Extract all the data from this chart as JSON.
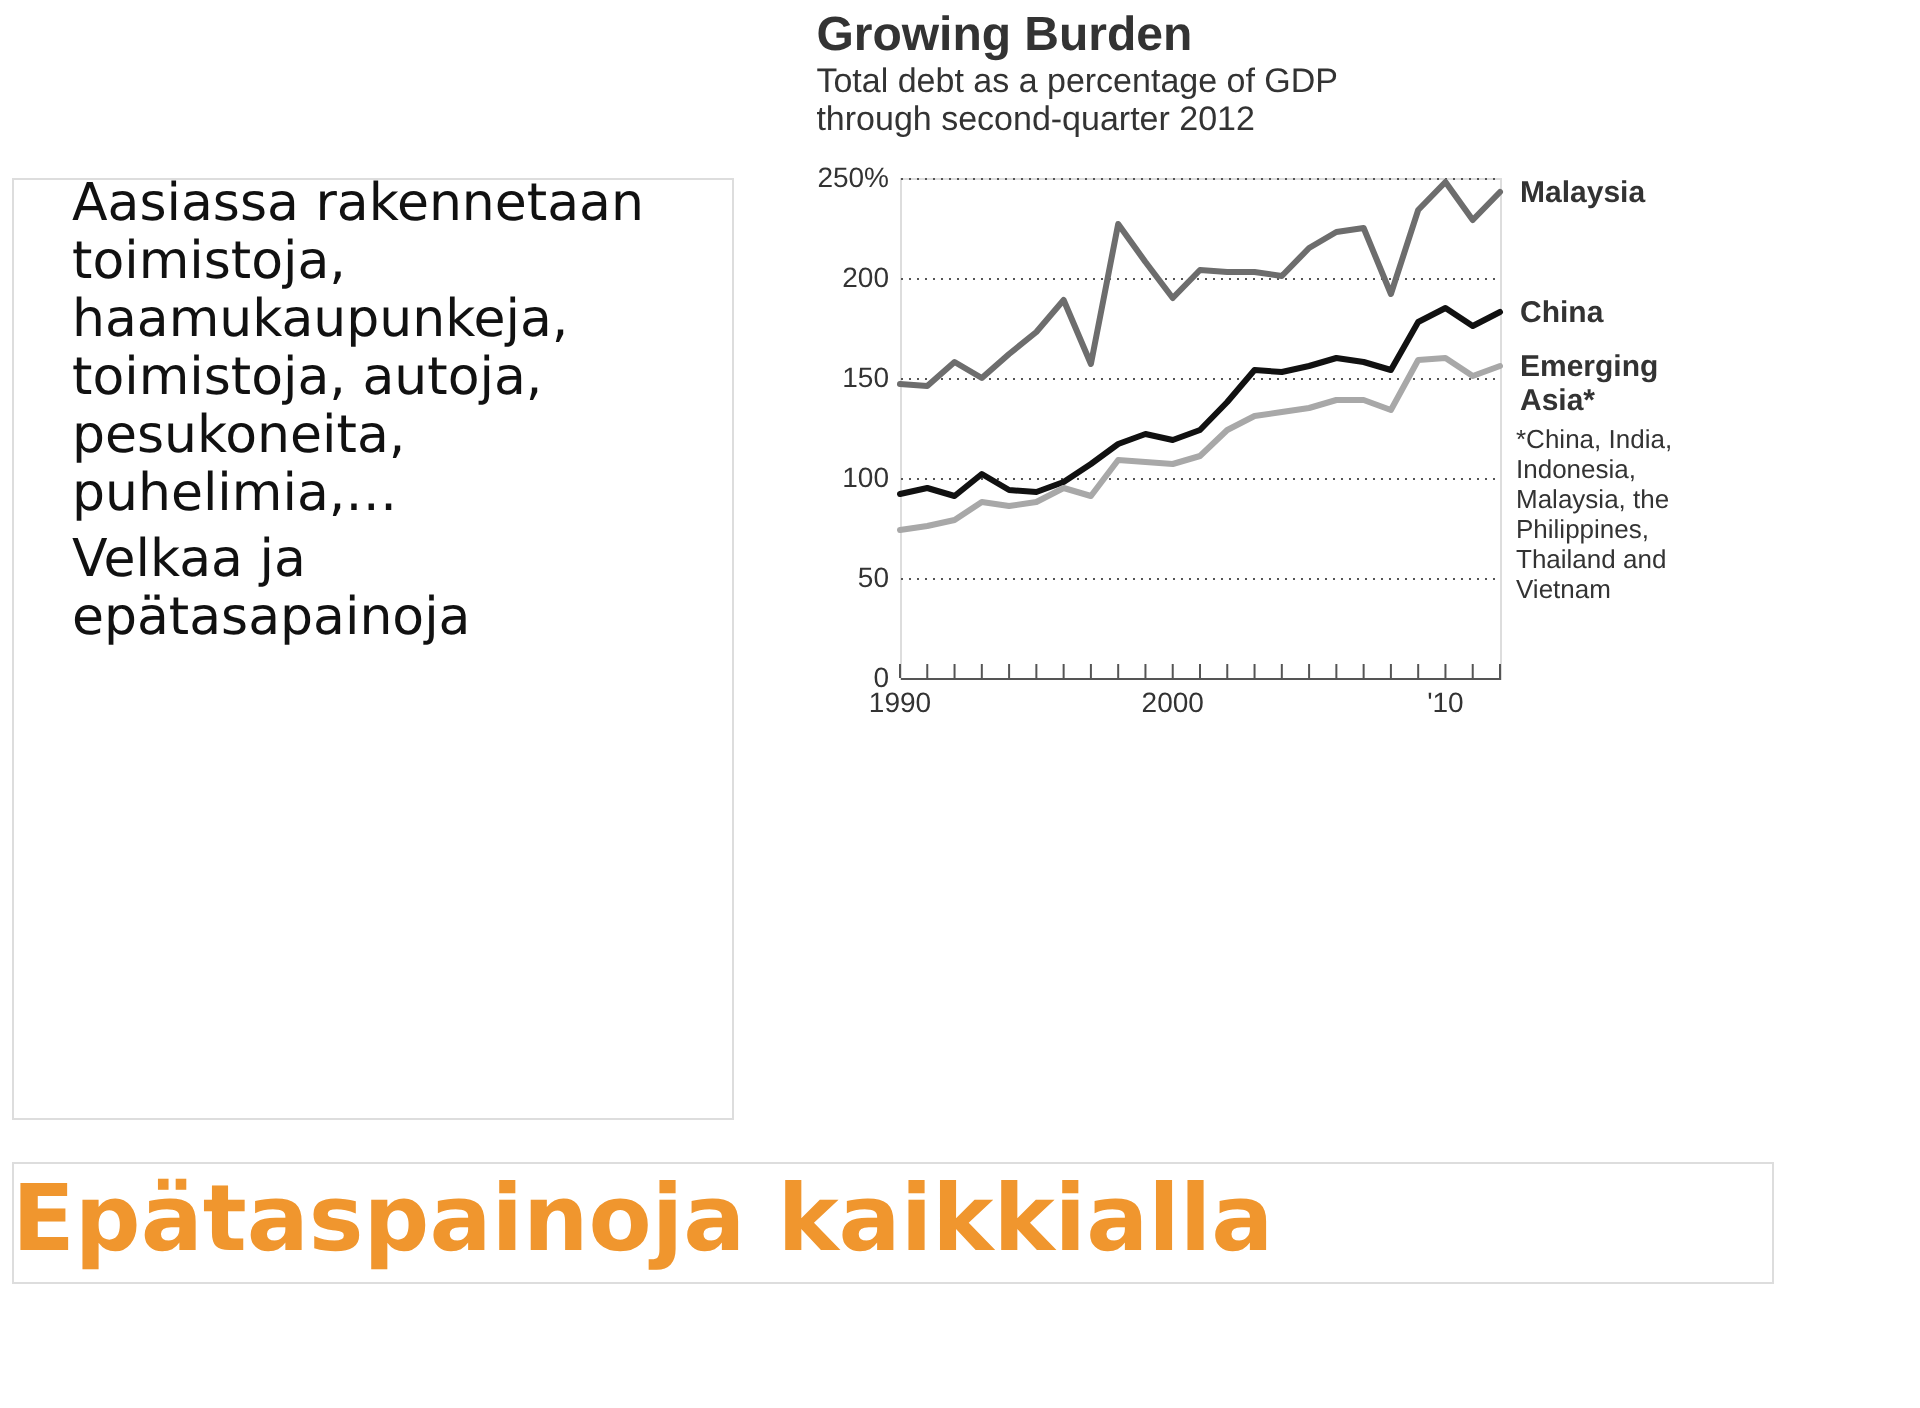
{
  "chart_data": {
    "type": "line",
    "title": "Growing Burden",
    "subtitle": "Total debt as a percentage of GDP through second-quarter 2012",
    "x": [
      1990,
      1991,
      1992,
      1993,
      1994,
      1995,
      1996,
      1997,
      1998,
      1999,
      2000,
      2001,
      2002,
      2003,
      2004,
      2005,
      2006,
      2007,
      2008,
      2009,
      2010,
      2011,
      2012
    ],
    "series": [
      {
        "name": "Malaysia",
        "color": "#6d6d6d",
        "values": [
          147,
          146,
          158,
          150,
          162,
          173,
          189,
          157,
          227,
          208,
          190,
          204,
          203,
          203,
          201,
          215,
          223,
          225,
          192,
          234,
          248,
          229,
          243
        ]
      },
      {
        "name": "China",
        "color": "#111111",
        "values": [
          92,
          95,
          91,
          102,
          94,
          93,
          98,
          107,
          117,
          122,
          119,
          124,
          138,
          154,
          153,
          156,
          160,
          158,
          154,
          178,
          185,
          176,
          183
        ]
      },
      {
        "name": "Emerging Asia*",
        "color": "#a8a8a8",
        "values": [
          74,
          76,
          79,
          88,
          86,
          88,
          95,
          91,
          109,
          108,
          107,
          111,
          124,
          131,
          133,
          135,
          139,
          139,
          134,
          159,
          160,
          151,
          156
        ]
      }
    ],
    "xlim": [
      1990,
      2012
    ],
    "xticks": [
      1990,
      {
        "value": 1991,
        "label": null
      },
      {
        "value": 1992,
        "label": null
      },
      {
        "value": 1993,
        "label": null
      },
      {
        "value": 1994,
        "label": null
      },
      {
        "value": 1995,
        "label": null
      },
      {
        "value": 1996,
        "label": null
      },
      {
        "value": 1997,
        "label": null
      },
      {
        "value": 1998,
        "label": null
      },
      {
        "value": 1999,
        "label": null
      },
      2000,
      {
        "value": 2001,
        "label": null
      },
      {
        "value": 2002,
        "label": null
      },
      {
        "value": 2003,
        "label": null
      },
      {
        "value": 2004,
        "label": null
      },
      {
        "value": 2005,
        "label": null
      },
      {
        "value": 2006,
        "label": null
      },
      {
        "value": 2007,
        "label": null
      },
      {
        "value": 2008,
        "label": null
      },
      {
        "value": 2009,
        "label": null
      },
      {
        "value": 2010,
        "label": "'10"
      },
      {
        "value": 2011,
        "label": null
      },
      {
        "value": 2012,
        "label": null
      }
    ],
    "ylim": [
      0,
      250
    ],
    "yticks": [
      0,
      50,
      100,
      150,
      200,
      {
        "value": 250,
        "label": "250%"
      }
    ],
    "grid": "y",
    "legend": false,
    "marker": "none",
    "line_style": "solid",
    "annotations": [
      "*China, India, Indonesia, Malaysia, the Philippines, Thailand and Vietnam",
      "Aasiassa rakennetaan toimistoja, haamukaupunkeja, toimistoja, autoja, pesukoneita, puhelimia,…",
      "Velkaa ja epätasapainoja",
      "Epätaspainoja kaikkialla"
    ]
  }
}
